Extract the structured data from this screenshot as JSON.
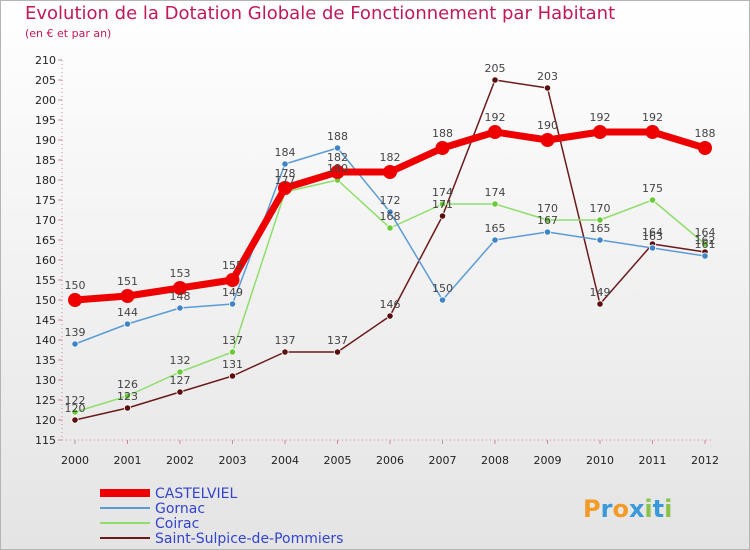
{
  "chart_data": {
    "type": "line",
    "title": "Evolution de la Dotation Globale de Fonctionnement par Habitant",
    "subtitle": "(en € et par an)",
    "xlabel": "",
    "ylabel": "",
    "x": [
      "2000",
      "2001",
      "2002",
      "2003",
      "2004",
      "2005",
      "2006",
      "2007",
      "2008",
      "2009",
      "2010",
      "2011",
      "2012"
    ],
    "ylim": [
      115,
      210
    ],
    "yticks": [
      115,
      120,
      125,
      130,
      135,
      140,
      145,
      150,
      155,
      160,
      165,
      170,
      175,
      180,
      185,
      190,
      195,
      200,
      205,
      210
    ],
    "grid": false,
    "legend_position": "bottom-left",
    "series": [
      {
        "name": "Saint-Sulpice-de-Pommiers",
        "color": "#6b1a1a",
        "marker_color": "#5a0f0f",
        "values": [
          120,
          123,
          127,
          131,
          137,
          137,
          146,
          171,
          205,
          203,
          149,
          164,
          162
        ]
      },
      {
        "name": "Coirac",
        "color": "#8fde6b",
        "marker_color": "#6acb3a",
        "values": [
          122,
          126,
          132,
          137,
          177,
          180,
          168,
          174,
          174,
          170,
          170,
          175,
          164
        ]
      },
      {
        "name": "Gornac",
        "color": "#5b9bd5",
        "marker_color": "#3f84c4",
        "values": [
          139,
          144,
          148,
          149,
          184,
          188,
          172,
          150,
          165,
          167,
          165,
          163,
          161
        ]
      },
      {
        "name": "CASTELVIEL",
        "color": "#ee0000",
        "marker_color": "#ee0000",
        "values": [
          150,
          151,
          153,
          155,
          178,
          182,
          182,
          188,
          192,
          190,
          192,
          192,
          188
        ]
      }
    ],
    "legend_order": [
      "CASTELVIEL",
      "Gornac",
      "Coirac",
      "Saint-Sulpice-de-Pommiers"
    ]
  },
  "logo": {
    "text": "Proxiti",
    "letters": [
      "P",
      "r",
      "o",
      "x",
      "i",
      "t",
      "i"
    ],
    "letter_colors": [
      "#f29b26",
      "#3a9ad9",
      "#f29b26",
      "#3a9ad9",
      "#8bc34a",
      "#3a9ad9",
      "#8bc34a"
    ]
  }
}
